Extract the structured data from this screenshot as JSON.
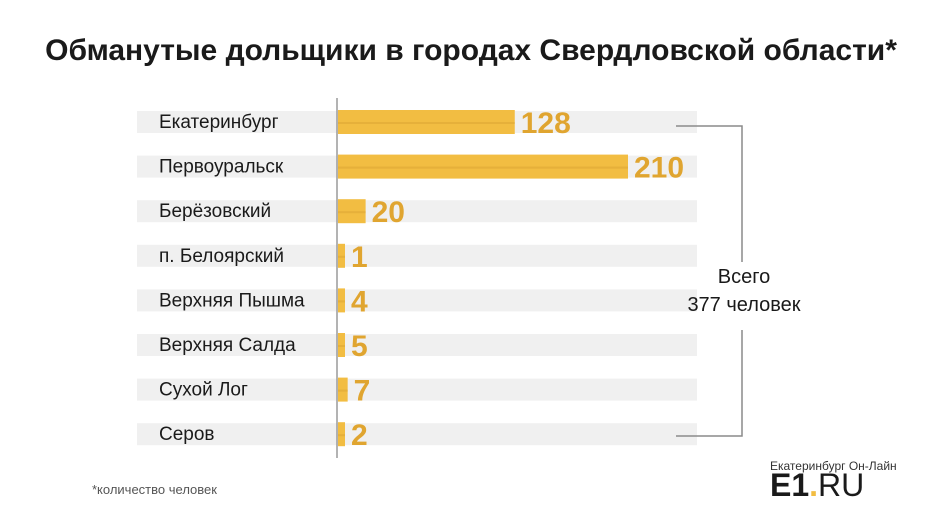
{
  "chart_data": {
    "type": "bar",
    "orientation": "horizontal",
    "title": "Обманутые дольщики в городах Свердловской области*",
    "categories": [
      "Екатеринбург",
      "Первоуральск",
      "Берёзовский",
      "п. Белоярский",
      "Верхняя Пышма",
      "Верхняя Салда",
      "Сухой Лог",
      "Серов"
    ],
    "values": [
      128,
      210,
      20,
      1,
      4,
      5,
      7,
      2
    ],
    "xlim": [
      0,
      210
    ],
    "grid": false,
    "bar_color": "#f2bd42",
    "bar_shadow_color": "#d9a431",
    "value_label_color": "#e0a530",
    "row_stripe_color": "#f0f0f0"
  },
  "total_annotation": {
    "line1": "Всего",
    "line2": "377 человек"
  },
  "footnote": "*количество человек",
  "logo": {
    "top_text": "Екатеринбург Он-Лайн",
    "main_text": "E1",
    "dot": ".",
    "suffix": "RU",
    "accent_color": "#f2bd42"
  }
}
